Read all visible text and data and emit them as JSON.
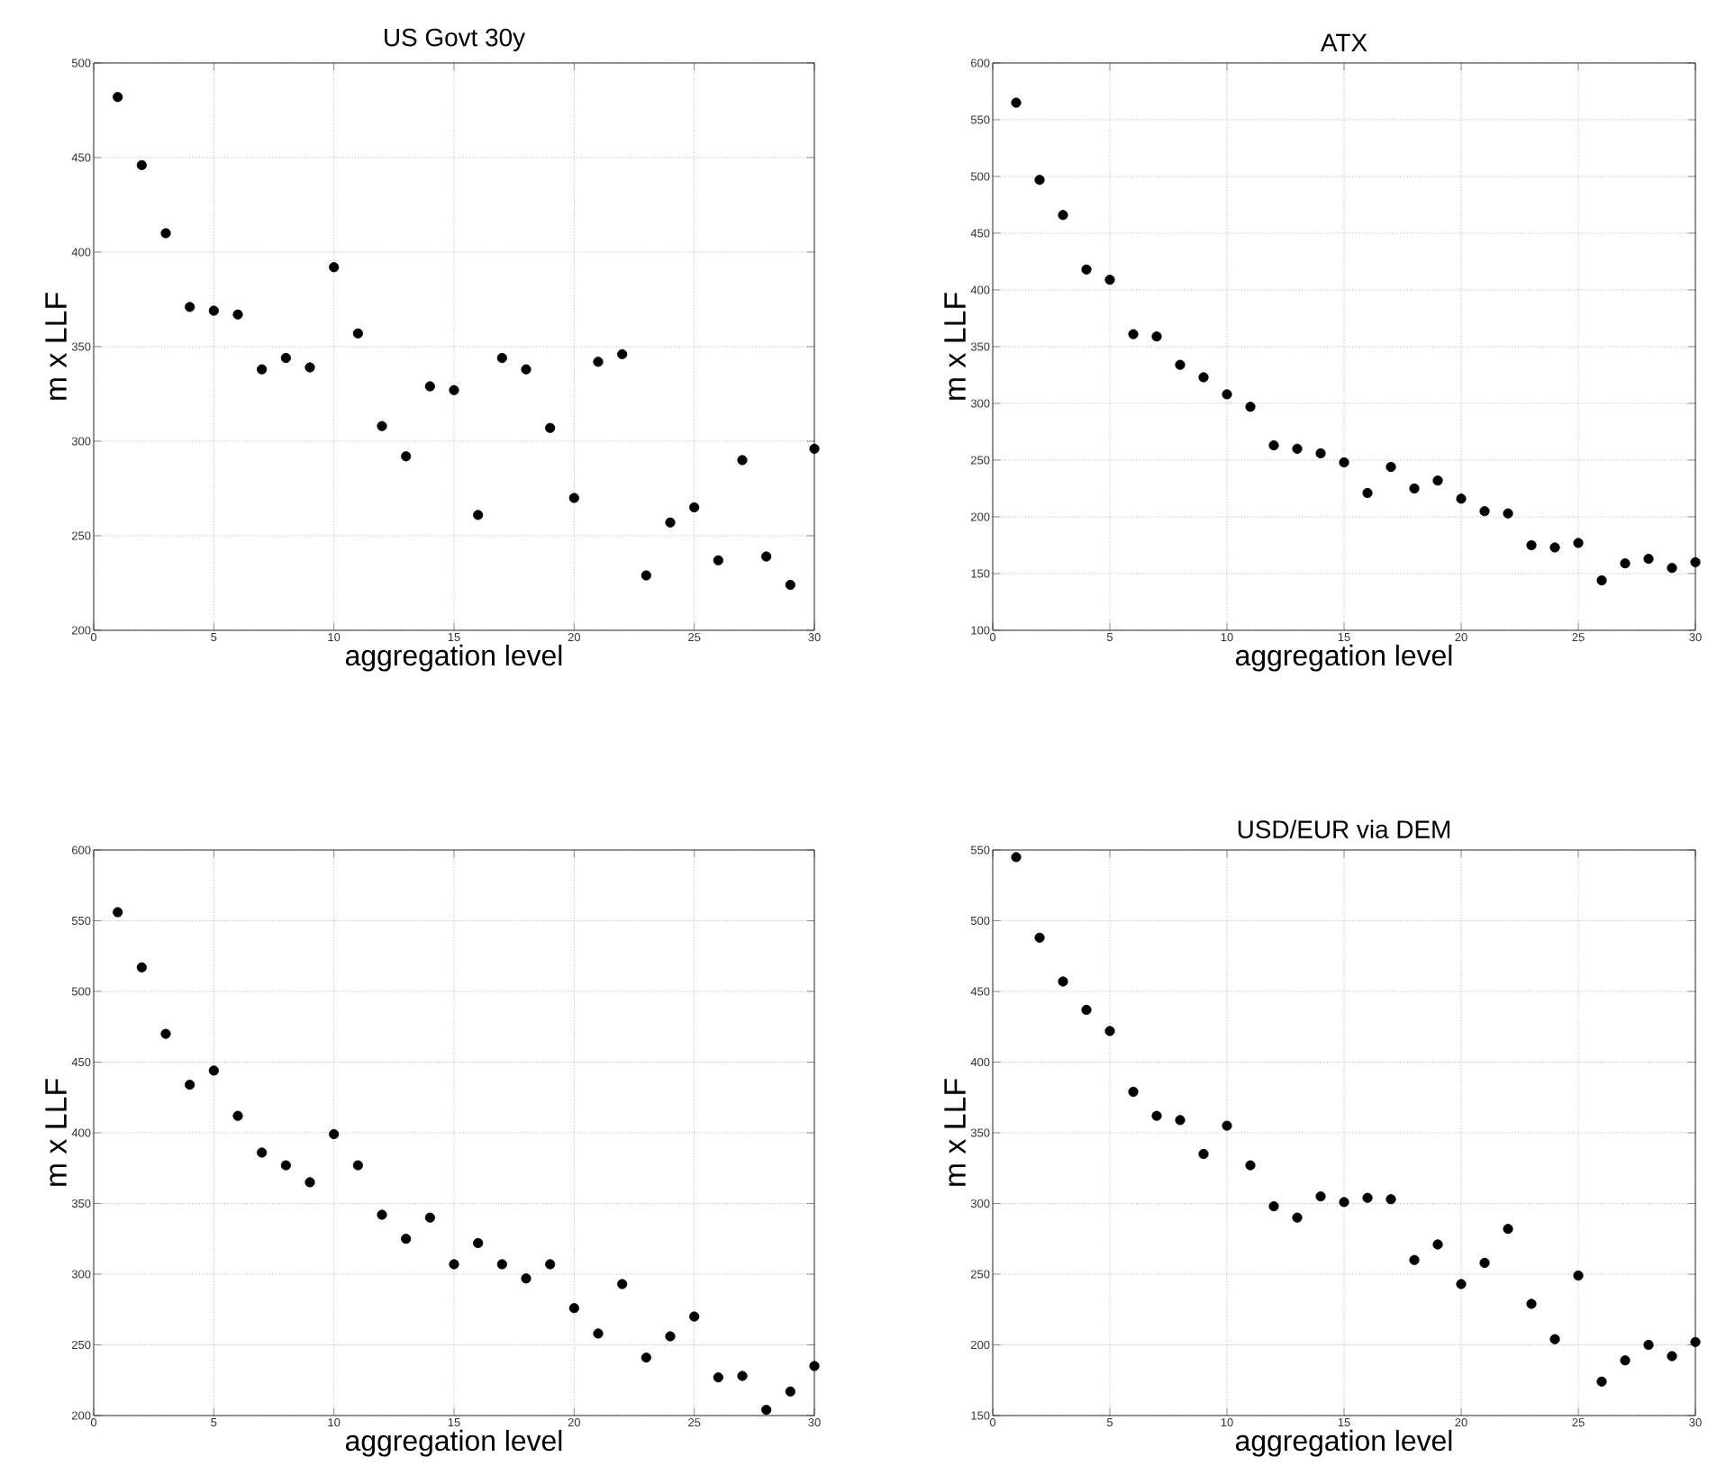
{
  "chart_data": [
    {
      "type": "scatter",
      "title": "US Govt 30y",
      "xlabel": "aggregation level",
      "ylabel": "m x LLF",
      "color": "#000000",
      "marker": "circle",
      "grid": true,
      "x": [
        1,
        2,
        3,
        4,
        5,
        6,
        7,
        8,
        9,
        10,
        11,
        12,
        13,
        14,
        15,
        16,
        17,
        18,
        19,
        20,
        21,
        22,
        23,
        24,
        25,
        26,
        27,
        28,
        29,
        30
      ],
      "values": [
        482,
        446,
        410,
        371,
        369,
        367,
        338,
        344,
        339,
        392,
        357,
        308,
        292,
        329,
        327,
        261,
        344,
        338,
        307,
        270,
        342,
        346,
        229,
        257,
        265,
        237,
        290,
        239,
        224,
        296
      ],
      "xlim": [
        0,
        30
      ],
      "xticks": [
        0,
        5,
        10,
        15,
        20,
        25,
        30
      ],
      "ylim": [
        200,
        500
      ],
      "yticks": [
        200,
        250,
        300,
        350,
        400,
        450,
        500
      ]
    },
    {
      "type": "scatter",
      "title": "ATX",
      "xlabel": "aggregation level",
      "ylabel": "m x LLF",
      "color": "#000000",
      "marker": "circle",
      "grid": true,
      "x": [
        1,
        2,
        3,
        4,
        5,
        6,
        7,
        8,
        9,
        10,
        11,
        12,
        13,
        14,
        15,
        16,
        17,
        18,
        19,
        20,
        21,
        22,
        23,
        24,
        25,
        26,
        27,
        28,
        29,
        30
      ],
      "values": [
        565,
        497,
        466,
        418,
        409,
        361,
        359,
        334,
        323,
        308,
        297,
        263,
        260,
        256,
        248,
        221,
        244,
        225,
        232,
        216,
        205,
        203,
        175,
        173,
        177,
        144,
        159,
        163,
        155,
        160
      ],
      "xlim": [
        0,
        30
      ],
      "xticks": [
        0,
        5,
        10,
        15,
        20,
        25,
        30
      ],
      "ylim": [
        100,
        600
      ],
      "yticks": [
        100,
        150,
        200,
        250,
        300,
        350,
        400,
        450,
        500,
        550,
        600
      ]
    },
    {
      "type": "scatter",
      "xlabel": "aggregation level",
      "ylabel": "m x LLF",
      "color": "#000000",
      "marker": "circle",
      "grid": true,
      "x": [
        1,
        2,
        3,
        4,
        5,
        6,
        7,
        8,
        9,
        10,
        11,
        12,
        13,
        14,
        15,
        16,
        17,
        18,
        19,
        20,
        21,
        22,
        23,
        24,
        25,
        26,
        27,
        28,
        29,
        30
      ],
      "values": [
        556,
        517,
        470,
        434,
        444,
        412,
        386,
        377,
        365,
        399,
        377,
        342,
        325,
        340,
        307,
        322,
        307,
        297,
        307,
        276,
        258,
        293,
        241,
        256,
        270,
        227,
        228,
        204,
        217,
        235
      ],
      "xlim": [
        0,
        30
      ],
      "xticks": [
        0,
        5,
        10,
        15,
        20,
        25,
        30
      ],
      "ylim": [
        200,
        600
      ],
      "yticks": [
        200,
        250,
        300,
        350,
        400,
        450,
        500,
        550,
        600
      ]
    },
    {
      "type": "scatter",
      "title": "USD/EUR via DEM",
      "xlabel": "aggregation level",
      "ylabel": "m x LLF",
      "color": "#000000",
      "marker": "circle",
      "grid": true,
      "x": [
        1,
        2,
        3,
        4,
        5,
        6,
        7,
        8,
        9,
        10,
        11,
        12,
        13,
        14,
        15,
        16,
        17,
        18,
        19,
        20,
        21,
        22,
        23,
        24,
        25,
        26,
        27,
        28,
        29,
        30
      ],
      "values": [
        545,
        488,
        457,
        437,
        422,
        379,
        362,
        359,
        335,
        355,
        327,
        298,
        290,
        305,
        301,
        304,
        303,
        260,
        271,
        243,
        258,
        282,
        229,
        204,
        249,
        174,
        189,
        200,
        192,
        202
      ],
      "xlim": [
        0,
        30
      ],
      "xticks": [
        0,
        5,
        10,
        15,
        20,
        25,
        30
      ],
      "ylim": [
        150,
        550
      ],
      "yticks": [
        150,
        200,
        250,
        300,
        350,
        400,
        450,
        500,
        550
      ]
    }
  ]
}
